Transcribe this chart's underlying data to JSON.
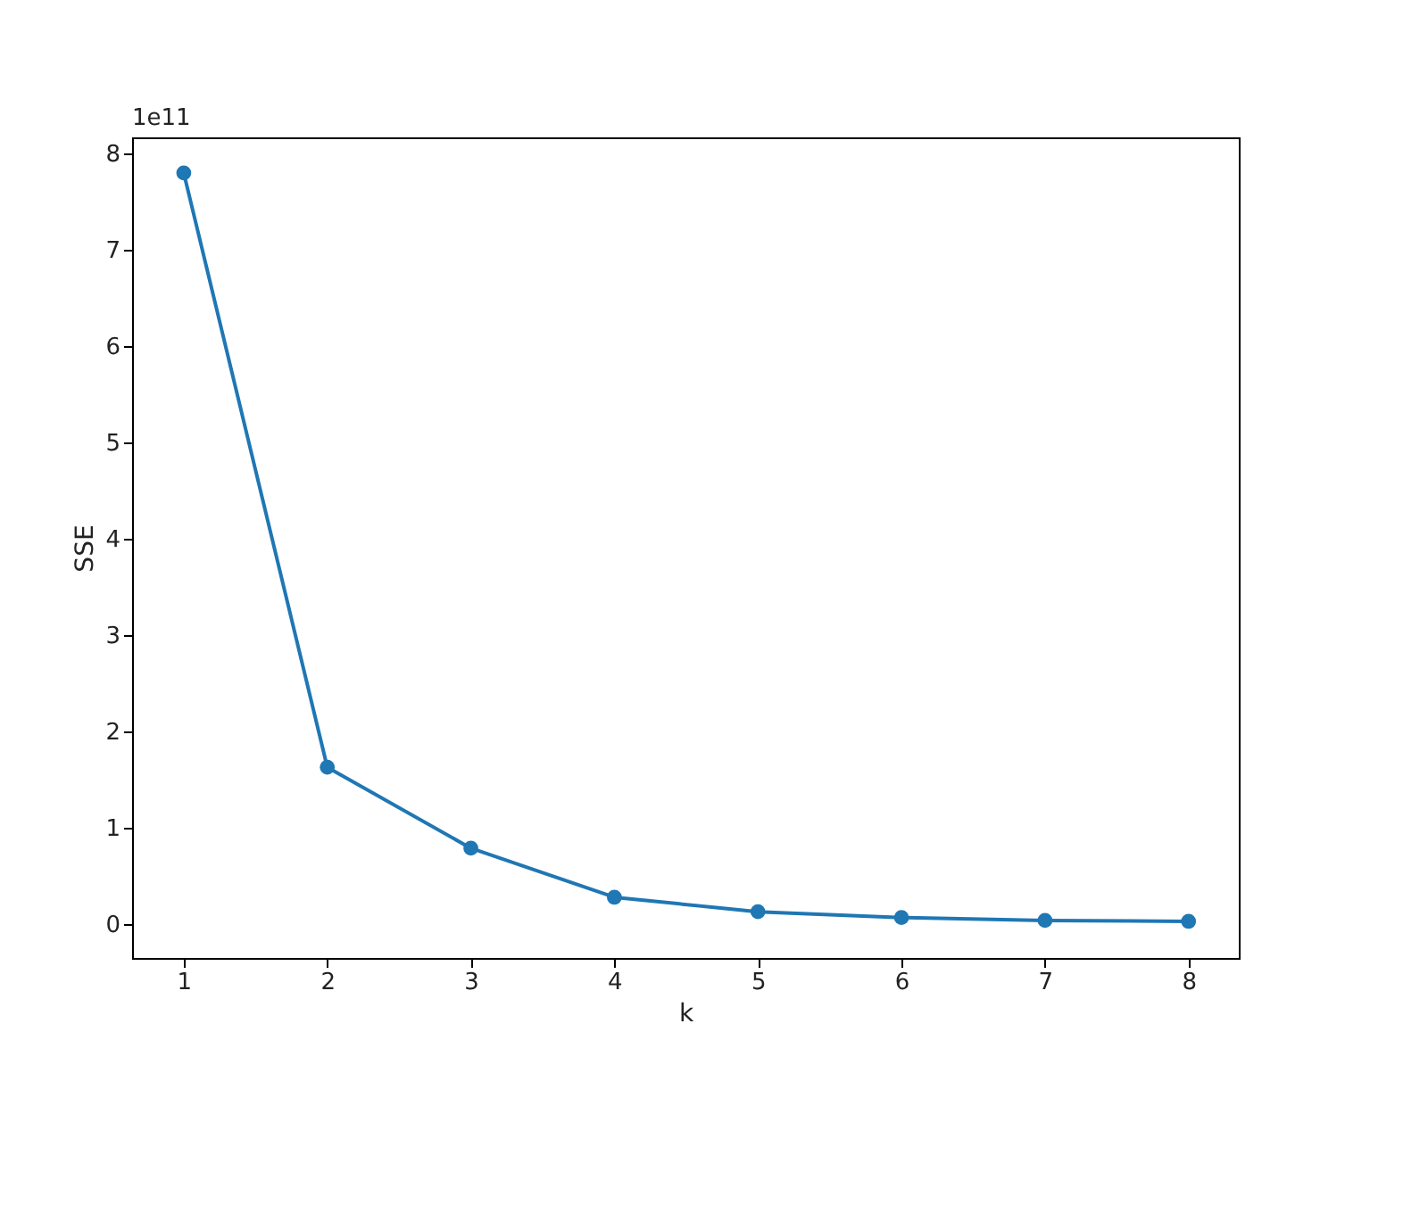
{
  "chart_data": {
    "type": "line",
    "xlabel": "k",
    "ylabel": "SSE",
    "x": [
      1,
      2,
      3,
      4,
      5,
      6,
      7,
      8
    ],
    "series": [
      {
        "color": "#1f77b4",
        "values": [
          7.8,
          1.63,
          0.79,
          0.28,
          0.13,
          0.07,
          0.04,
          0.03
        ]
      }
    ],
    "xlim": [
      0.64,
      8.35
    ],
    "xticks": [
      1,
      2,
      3,
      4,
      5,
      6,
      7,
      8
    ],
    "ylim": [
      -0.35,
      8.17
    ],
    "yticks": [
      0,
      1,
      2,
      3,
      4,
      5,
      6,
      7,
      8
    ],
    "annotations": [
      "1e11"
    ],
    "marker": "circle",
    "line_style": "solid",
    "grid": false
  }
}
